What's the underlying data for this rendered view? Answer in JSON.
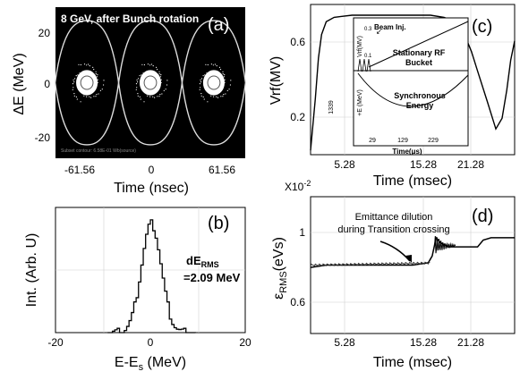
{
  "panels": {
    "a": {
      "id": "(a)",
      "title": "8 GeV, after Bunch rotation",
      "ylabel": "ΔE (MeV)",
      "xlabel": "Time  (nsec)",
      "xticks": [
        "-61.56",
        "0",
        "61.56"
      ],
      "yticks": [
        "20",
        "0",
        "-20"
      ],
      "footer": "Subset contour: 6.58E-01 Wb(source)"
    },
    "b": {
      "id": "(b)",
      "ylabel": "Int. (Arb. U)",
      "xlabel": "E-E",
      "xlabel_sub": "s",
      "xlabel_unit": " (MeV)",
      "xticks": [
        "-20",
        "0",
        "20"
      ],
      "annot_title": "dE",
      "annot_sub": "RMS",
      "annot_value": "=2.09 MeV"
    },
    "c": {
      "id": "(c)",
      "ylabel": "Vrf(MV)",
      "xlabel": "Time  (msec)",
      "xticks": [
        "5.28",
        "15.28",
        "21.28"
      ],
      "yticks": [
        "0.6",
        "0.2"
      ],
      "inset": {
        "beam_inj": "Beam Inj.",
        "ylabel_top": "Vrf(MV)",
        "ylabel_bottom": "+E (MeV)",
        "ytick_top": "0.3",
        "ytick_top2": "0.1",
        "ytick_bottom": "1339",
        "stationary": [
          "Stationary RF",
          "Bucket"
        ],
        "synchronous": [
          "Synchronous",
          "Energy"
        ],
        "xticks": [
          "29",
          "129",
          "229"
        ],
        "xlabel": "Time(μs)"
      }
    },
    "d": {
      "id": "(d)",
      "ylabel": "ε",
      "ylabel_sub": "RMS",
      "ylabel_unit": "(eVs)",
      "xlabel": "Time  (msec)",
      "scale": "X10",
      "scale_exp": "-2",
      "xticks": [
        "5.28",
        "15.28",
        "21.28"
      ],
      "yticks": [
        "1",
        "0.6"
      ],
      "annotation": [
        "Emittance dilution",
        "during Transition crossing"
      ]
    }
  },
  "chart_data": [
    {
      "type": "scatter",
      "panel": "(a)",
      "title": "8 GeV, after Bunch rotation",
      "xlabel": "Time (nsec)",
      "ylabel": "ΔE (MeV)",
      "xlim": [
        -92,
        92
      ],
      "ylim": [
        -28,
        28
      ],
      "bunch_centers_ns": [
        -61.56,
        0,
        61.56
      ],
      "bucket_half_height_MeV": 23,
      "bunch_core_half_width_ns": 10,
      "bunch_core_half_height_MeV": 4.5
    },
    {
      "type": "bar",
      "panel": "(b)",
      "xlabel": "E-Es (MeV)",
      "ylabel": "Int. (Arb. U)",
      "xlim": [
        -20,
        20
      ],
      "bin_width_MeV": 0.5,
      "rms_MeV": 2.09,
      "mean_MeV": 0
    },
    {
      "type": "line",
      "panel": "(c)",
      "xlabel": "Time (msec)",
      "ylabel": "Vrf(MV)",
      "xlim": [
        0,
        26
      ],
      "ylim": [
        0.1,
        0.8
      ],
      "x": [
        0.0,
        0.6,
        1.0,
        1.4,
        2.0,
        3.0,
        5.28,
        10.0,
        15.28,
        17.0,
        18.5,
        19.5,
        20.5,
        21.28,
        22.5,
        23.6,
        24.4,
        25.0,
        25.5,
        26.0
      ],
      "y": [
        0.12,
        0.36,
        0.55,
        0.66,
        0.72,
        0.74,
        0.75,
        0.75,
        0.75,
        0.74,
        0.72,
        0.67,
        0.58,
        0.49,
        0.35,
        0.22,
        0.27,
        0.4,
        0.54,
        0.63
      ]
    },
    {
      "type": "line",
      "panel": "(d)",
      "xlabel": "Time (msec)",
      "ylabel": "εRMS(eVs)",
      "scale": "X10^-2",
      "xlim": [
        0,
        26
      ],
      "ylim": [
        0.5,
        1.1
      ],
      "x": [
        0.0,
        2.0,
        5.28,
        10.0,
        13.0,
        15.0,
        15.5,
        16.0,
        16.5,
        17.0,
        17.5,
        18.0,
        19.0,
        20.0,
        21.28,
        22.0,
        23.0,
        26.0
      ],
      "y": [
        0.79,
        0.8,
        0.8,
        0.8,
        0.8,
        0.81,
        0.84,
        0.92,
        0.9,
        0.89,
        0.88,
        0.88,
        0.88,
        0.88,
        0.88,
        0.91,
        0.92,
        0.92
      ]
    }
  ]
}
